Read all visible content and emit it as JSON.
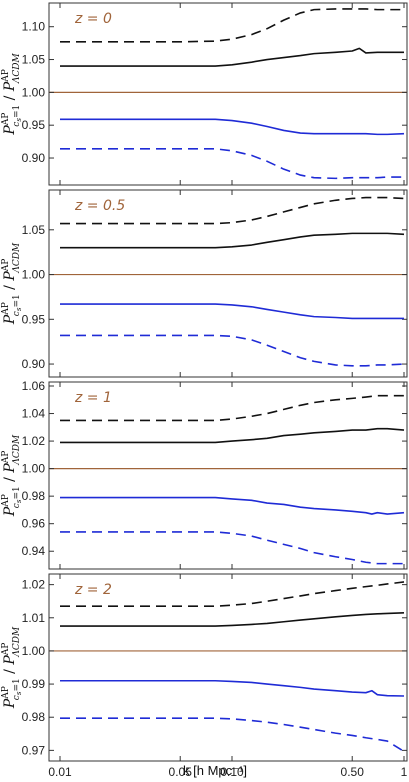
{
  "chart_data": {
    "type": "line",
    "x_scale": "log",
    "xlim": [
      0.01,
      1.0
    ],
    "xlabel": "k [h Mpc⁻¹]",
    "x_ticks": [
      0.01,
      0.05,
      0.1,
      0.5,
      1
    ],
    "x_tick_labels": [
      "0.01",
      "0.05",
      "0.10",
      "0.50",
      "1"
    ],
    "ylabel": "P^AP_{c_s=1} / P^AP_ΛCDM",
    "ylabel_parts": {
      "p": "P",
      "sup": "AP",
      "sub1": "c",
      "sub2": "s",
      "sub3": "=1",
      "slash": "/",
      "sub_lcdm": "ΛCDM"
    },
    "colors": {
      "black": "#111111",
      "blue": "#1f2bd6",
      "reference": "#a0643a",
      "frame": "#333333"
    },
    "panels": [
      {
        "label": "z = 0",
        "ylim": [
          0.865,
          1.13
        ],
        "y_ticks": [
          "0.90",
          "0.95",
          "1.00",
          "1.05",
          "1.10"
        ],
        "reference": 1.0,
        "series": [
          {
            "color": "black",
            "dash": true,
            "x": [
              0.01,
              0.05,
              0.08,
              0.1,
              0.13,
              0.16,
              0.2,
              0.25,
              0.3,
              0.4,
              0.5,
              0.6,
              0.7,
              0.8,
              1.0
            ],
            "y": [
              1.077,
              1.077,
              1.078,
              1.081,
              1.088,
              1.097,
              1.11,
              1.121,
              1.126,
              1.127,
              1.127,
              1.127,
              1.126,
              1.126,
              1.126
            ]
          },
          {
            "color": "black",
            "dash": false,
            "x": [
              0.01,
              0.05,
              0.08,
              0.1,
              0.13,
              0.16,
              0.2,
              0.25,
              0.3,
              0.4,
              0.5,
              0.55,
              0.6,
              0.7,
              0.8,
              1.0
            ],
            "y": [
              1.04,
              1.04,
              1.04,
              1.042,
              1.046,
              1.05,
              1.053,
              1.056,
              1.059,
              1.061,
              1.063,
              1.067,
              1.06,
              1.061,
              1.061,
              1.061
            ]
          },
          {
            "color": "blue",
            "dash": false,
            "x": [
              0.01,
              0.05,
              0.08,
              0.1,
              0.13,
              0.16,
              0.2,
              0.25,
              0.3,
              0.4,
              0.5,
              0.6,
              0.7,
              0.8,
              1.0
            ],
            "y": [
              0.959,
              0.959,
              0.959,
              0.957,
              0.953,
              0.948,
              0.942,
              0.938,
              0.937,
              0.937,
              0.937,
              0.937,
              0.936,
              0.936,
              0.937
            ]
          },
          {
            "color": "blue",
            "dash": true,
            "x": [
              0.01,
              0.05,
              0.08,
              0.1,
              0.13,
              0.16,
              0.2,
              0.25,
              0.3,
              0.4,
              0.5,
              0.6,
              0.7,
              0.8,
              1.0
            ],
            "y": [
              0.914,
              0.914,
              0.914,
              0.911,
              0.904,
              0.895,
              0.883,
              0.874,
              0.87,
              0.869,
              0.87,
              0.87,
              0.87,
              0.871,
              0.871
            ]
          }
        ]
      },
      {
        "label": "z = 0.5",
        "ylim": [
          0.89,
          1.09
        ],
        "y_ticks": [
          "0.90",
          "0.95",
          "1.00",
          "1.05"
        ],
        "reference": 1.0,
        "series": [
          {
            "color": "black",
            "dash": true,
            "x": [
              0.01,
              0.05,
              0.08,
              0.1,
              0.13,
              0.16,
              0.2,
              0.25,
              0.3,
              0.4,
              0.5,
              0.6,
              0.7,
              0.8,
              1.0
            ],
            "y": [
              1.057,
              1.057,
              1.057,
              1.058,
              1.061,
              1.065,
              1.07,
              1.075,
              1.079,
              1.083,
              1.085,
              1.086,
              1.086,
              1.086,
              1.085
            ]
          },
          {
            "color": "black",
            "dash": false,
            "x": [
              0.01,
              0.05,
              0.08,
              0.1,
              0.13,
              0.16,
              0.2,
              0.25,
              0.3,
              0.4,
              0.5,
              0.6,
              0.7,
              0.8,
              1.0
            ],
            "y": [
              1.03,
              1.03,
              1.03,
              1.031,
              1.033,
              1.036,
              1.039,
              1.042,
              1.044,
              1.045,
              1.046,
              1.046,
              1.046,
              1.046,
              1.045
            ]
          },
          {
            "color": "blue",
            "dash": false,
            "x": [
              0.01,
              0.05,
              0.08,
              0.1,
              0.13,
              0.16,
              0.2,
              0.25,
              0.3,
              0.4,
              0.5,
              0.6,
              0.7,
              0.8,
              1.0
            ],
            "y": [
              0.967,
              0.967,
              0.967,
              0.966,
              0.964,
              0.961,
              0.958,
              0.955,
              0.953,
              0.952,
              0.951,
              0.951,
              0.951,
              0.951,
              0.951
            ]
          },
          {
            "color": "blue",
            "dash": true,
            "x": [
              0.01,
              0.05,
              0.08,
              0.1,
              0.13,
              0.16,
              0.2,
              0.25,
              0.3,
              0.4,
              0.5,
              0.6,
              0.7,
              0.8,
              1.0
            ],
            "y": [
              0.932,
              0.932,
              0.932,
              0.931,
              0.927,
              0.921,
              0.914,
              0.907,
              0.903,
              0.899,
              0.898,
              0.898,
              0.899,
              0.899,
              0.9
            ]
          }
        ]
      },
      {
        "label": "z = 1",
        "ylim": [
          0.93,
          1.06
        ],
        "y_ticks": [
          "0.94",
          "0.96",
          "0.98",
          "1.00",
          "1.02",
          "1.04",
          "1.06"
        ],
        "reference": 1.0,
        "series": [
          {
            "color": "black",
            "dash": true,
            "x": [
              0.01,
              0.05,
              0.08,
              0.1,
              0.13,
              0.16,
              0.2,
              0.25,
              0.3,
              0.4,
              0.5,
              0.6,
              0.7,
              0.8,
              1.0
            ],
            "y": [
              1.035,
              1.035,
              1.035,
              1.036,
              1.038,
              1.04,
              1.043,
              1.046,
              1.048,
              1.05,
              1.051,
              1.052,
              1.053,
              1.053,
              1.053
            ]
          },
          {
            "color": "black",
            "dash": false,
            "x": [
              0.01,
              0.05,
              0.08,
              0.1,
              0.13,
              0.16,
              0.2,
              0.25,
              0.3,
              0.4,
              0.5,
              0.6,
              0.7,
              0.8,
              1.0
            ],
            "y": [
              1.019,
              1.019,
              1.019,
              1.02,
              1.021,
              1.022,
              1.024,
              1.025,
              1.026,
              1.027,
              1.028,
              1.028,
              1.029,
              1.029,
              1.028
            ]
          },
          {
            "color": "blue",
            "dash": false,
            "x": [
              0.01,
              0.05,
              0.08,
              0.1,
              0.13,
              0.16,
              0.2,
              0.25,
              0.3,
              0.4,
              0.5,
              0.6,
              0.65,
              0.7,
              0.8,
              1.0
            ],
            "y": [
              0.979,
              0.979,
              0.979,
              0.978,
              0.977,
              0.975,
              0.974,
              0.972,
              0.971,
              0.97,
              0.969,
              0.968,
              0.967,
              0.968,
              0.967,
              0.968
            ]
          },
          {
            "color": "blue",
            "dash": true,
            "x": [
              0.01,
              0.05,
              0.08,
              0.1,
              0.13,
              0.16,
              0.2,
              0.25,
              0.3,
              0.4,
              0.5,
              0.6,
              0.7,
              0.8,
              1.0
            ],
            "y": [
              0.954,
              0.954,
              0.954,
              0.953,
              0.951,
              0.948,
              0.945,
              0.942,
              0.939,
              0.936,
              0.934,
              0.932,
              0.931,
              0.931,
              0.931
            ]
          }
        ]
      },
      {
        "label": "z = 2",
        "ylim": [
          0.968,
          1.022
        ],
        "y_ticks": [
          "0.97",
          "0.98",
          "0.99",
          "1.00",
          "1.01",
          "1.02"
        ],
        "reference": 1.0,
        "series": [
          {
            "color": "black",
            "dash": true,
            "x": [
              0.01,
              0.05,
              0.08,
              0.1,
              0.13,
              0.16,
              0.2,
              0.25,
              0.3,
              0.4,
              0.5,
              0.6,
              0.7,
              0.8,
              1.0
            ],
            "y": [
              1.0135,
              1.0135,
              1.0135,
              1.0138,
              1.0143,
              1.015,
              1.0158,
              1.0166,
              1.0173,
              1.0182,
              1.0189,
              1.0194,
              1.0198,
              1.0202,
              1.0208
            ]
          },
          {
            "color": "black",
            "dash": false,
            "x": [
              0.01,
              0.05,
              0.08,
              0.1,
              0.13,
              0.16,
              0.2,
              0.25,
              0.3,
              0.4,
              0.5,
              0.6,
              0.7,
              0.8,
              1.0
            ],
            "y": [
              1.0075,
              1.0075,
              1.0075,
              1.0077,
              1.008,
              1.0083,
              1.0088,
              1.0093,
              1.0097,
              1.0103,
              1.0107,
              1.011,
              1.0112,
              1.0113,
              1.0115
            ]
          },
          {
            "color": "blue",
            "dash": false,
            "x": [
              0.01,
              0.05,
              0.08,
              0.1,
              0.13,
              0.16,
              0.2,
              0.25,
              0.3,
              0.4,
              0.5,
              0.6,
              0.65,
              0.7,
              0.8,
              1.0
            ],
            "y": [
              0.991,
              0.991,
              0.991,
              0.9908,
              0.9905,
              0.99,
              0.9895,
              0.989,
              0.9885,
              0.988,
              0.9876,
              0.9874,
              0.988,
              0.9868,
              0.9865,
              0.9864
            ]
          },
          {
            "color": "blue",
            "dash": true,
            "x": [
              0.01,
              0.05,
              0.08,
              0.1,
              0.13,
              0.16,
              0.2,
              0.25,
              0.3,
              0.4,
              0.5,
              0.6,
              0.7,
              0.8,
              1.0
            ],
            "y": [
              0.9797,
              0.9797,
              0.9797,
              0.9795,
              0.979,
              0.9785,
              0.9778,
              0.977,
              0.9763,
              0.9752,
              0.9745,
              0.9738,
              0.9733,
              0.9728,
              0.9697
            ]
          }
        ]
      }
    ]
  }
}
